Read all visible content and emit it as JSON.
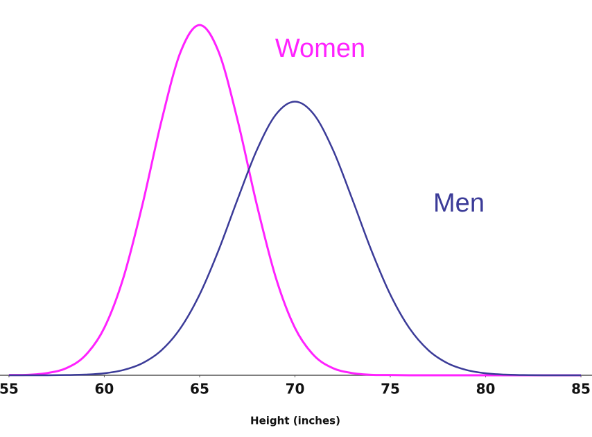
{
  "chart_data": {
    "type": "line",
    "x_label": "Height (inches)",
    "x": [
      55,
      56,
      57,
      58,
      59,
      60,
      61,
      62,
      63,
      64,
      65,
      66,
      67,
      68,
      69,
      70,
      71,
      72,
      73,
      74,
      75,
      76,
      77,
      78,
      79,
      80,
      81,
      82,
      83,
      84,
      85
    ],
    "series": [
      {
        "name": "Women",
        "color": "#ff22ff",
        "values": [
          0.0001,
          0.0002,
          0.001,
          0.0032,
          0.009,
          0.0216,
          0.0444,
          0.0777,
          0.1159,
          0.1473,
          0.1596,
          0.1473,
          0.1159,
          0.0777,
          0.0444,
          0.0216,
          0.009,
          0.0032,
          0.001,
          0.0002,
          0.0001,
          0,
          0,
          0,
          0,
          0,
          0,
          0,
          0,
          0,
          0
        ]
      },
      {
        "name": "Men",
        "color": "#3b3b98",
        "values": [
          0,
          0,
          0,
          0.0001,
          0.0003,
          0.0009,
          0.0024,
          0.0055,
          0.0114,
          0.0215,
          0.0368,
          0.0571,
          0.0804,
          0.1026,
          0.1188,
          0.1247,
          0.1188,
          0.1026,
          0.0804,
          0.0571,
          0.0368,
          0.0215,
          0.0114,
          0.0055,
          0.0024,
          0.0009,
          0.0003,
          0.0001,
          0,
          0,
          0
        ]
      }
    ],
    "xlim": [
      54.53,
      85.58
    ],
    "xticks": [
      55,
      60,
      65,
      70,
      75,
      80,
      85
    ],
    "ylim": [
      0,
      0.171
    ]
  }
}
